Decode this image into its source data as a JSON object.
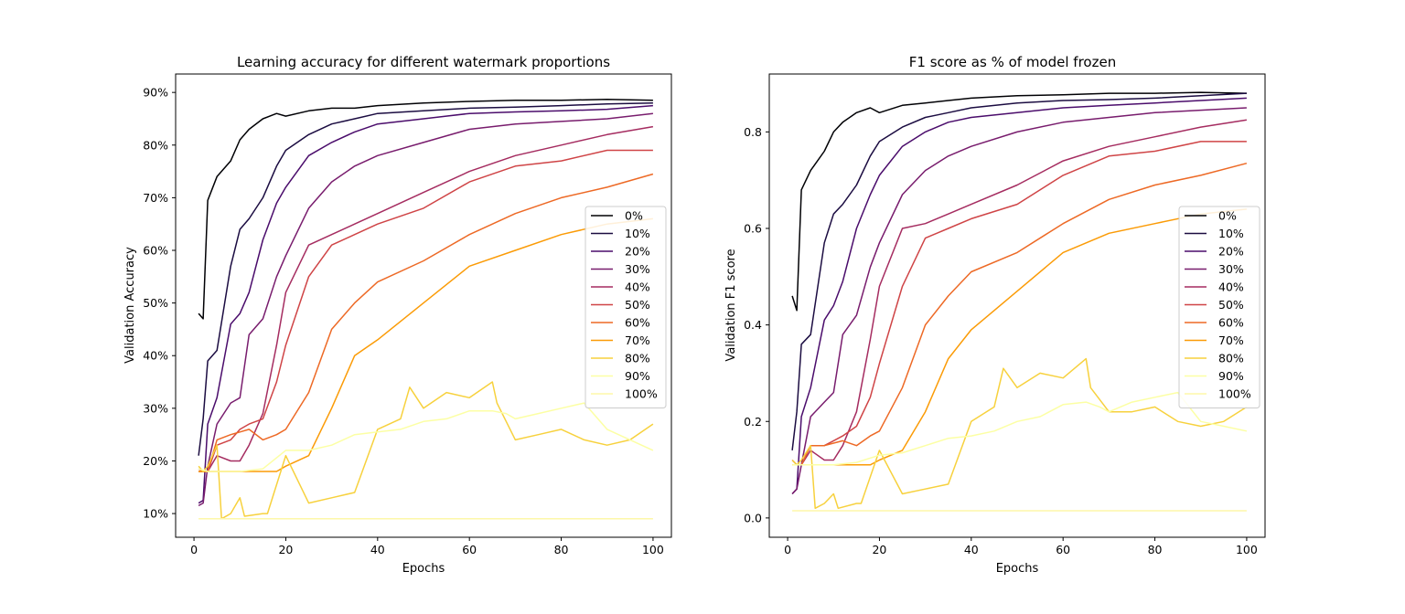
{
  "chart_data": [
    {
      "type": "line",
      "title": "Learning accuracy for different watermark proportions",
      "xlabel": "Epochs",
      "ylabel": "Validation Accuracy",
      "xlim": [
        -4,
        104
      ],
      "ylim": [
        5.5,
        93.5
      ],
      "xticks": [
        "0",
        "20",
        "40",
        "60",
        "80",
        "100"
      ],
      "yticks": [
        "10%",
        "20%",
        "30%",
        "40%",
        "50%",
        "60%",
        "70%",
        "80%",
        "90%"
      ],
      "legend_position": "center-right",
      "grid": false,
      "series": [
        {
          "name": "0%",
          "color": "#000004",
          "x": [
            1,
            2,
            3,
            5,
            8,
            10,
            12,
            15,
            18,
            20,
            25,
            30,
            35,
            40,
            50,
            60,
            70,
            80,
            90,
            100
          ],
          "values": [
            48,
            47,
            69.5,
            74,
            77,
            81,
            83,
            85,
            86,
            85.5,
            86.5,
            87,
            87,
            87.5,
            88,
            88.3,
            88.5,
            88.5,
            88.7,
            88.5
          ]
        },
        {
          "name": "10%",
          "color": "#1b0c41",
          "x": [
            1,
            2,
            3,
            5,
            8,
            10,
            12,
            15,
            18,
            20,
            25,
            30,
            35,
            40,
            50,
            60,
            70,
            80,
            90,
            100
          ],
          "values": [
            21,
            28,
            39,
            41,
            57,
            64,
            66,
            70,
            76,
            79,
            82,
            84,
            85,
            86,
            86.5,
            87,
            87.2,
            87.5,
            87.8,
            88
          ]
        },
        {
          "name": "20%",
          "color": "#4a0c6b",
          "x": [
            1,
            2,
            3,
            5,
            8,
            10,
            12,
            15,
            18,
            20,
            25,
            30,
            35,
            40,
            50,
            60,
            70,
            80,
            90,
            100
          ],
          "values": [
            12,
            12.5,
            27,
            32,
            46,
            48,
            52,
            62,
            69,
            72,
            78,
            80.5,
            82.5,
            84,
            85,
            86,
            86.3,
            86.5,
            86.8,
            87.5
          ]
        },
        {
          "name": "30%",
          "color": "#781c6d",
          "x": [
            1,
            2,
            3,
            5,
            8,
            10,
            12,
            15,
            18,
            20,
            25,
            30,
            35,
            40,
            50,
            60,
            70,
            80,
            90,
            100
          ],
          "values": [
            11.5,
            12,
            19,
            27,
            31,
            32,
            44,
            47,
            55,
            59,
            68,
            73,
            76,
            78,
            80.5,
            83,
            84,
            84.5,
            85,
            86
          ]
        },
        {
          "name": "40%",
          "color": "#a52c60",
          "x": [
            1,
            2,
            3,
            5,
            8,
            10,
            12,
            15,
            18,
            20,
            25,
            30,
            35,
            40,
            50,
            60,
            70,
            80,
            90,
            100
          ],
          "values": [
            18,
            18,
            18,
            21,
            20,
            20,
            23,
            29,
            42,
            52,
            61,
            63,
            65,
            67,
            71,
            75,
            78,
            80,
            82,
            83.5
          ]
        },
        {
          "name": "50%",
          "color": "#cf4446",
          "x": [
            1,
            2,
            3,
            5,
            8,
            10,
            12,
            15,
            18,
            20,
            25,
            30,
            35,
            40,
            50,
            60,
            70,
            80,
            90,
            100
          ],
          "values": [
            18.5,
            18,
            18,
            23,
            24,
            26,
            27,
            28,
            35,
            42,
            55,
            61,
            63,
            65,
            68,
            73,
            76,
            77,
            79,
            79
          ]
        },
        {
          "name": "60%",
          "color": "#ed6925",
          "x": [
            1,
            2,
            3,
            5,
            8,
            10,
            12,
            15,
            18,
            20,
            25,
            30,
            35,
            40,
            50,
            60,
            70,
            80,
            90,
            100
          ],
          "values": [
            18,
            18,
            18,
            24,
            25,
            25.5,
            26,
            24,
            25,
            26,
            33,
            45,
            50,
            54,
            58,
            63,
            67,
            70,
            72,
            74.5
          ]
        },
        {
          "name": "70%",
          "color": "#fb9b06",
          "x": [
            1,
            2,
            3,
            5,
            8,
            10,
            12,
            15,
            18,
            20,
            25,
            30,
            35,
            40,
            50,
            60,
            70,
            80,
            90,
            100
          ],
          "values": [
            18,
            18,
            18,
            18,
            18,
            18,
            18,
            18,
            18,
            19,
            21,
            30,
            40,
            43,
            50,
            57,
            60,
            63,
            65,
            66
          ]
        },
        {
          "name": "80%",
          "color": "#f7d13d",
          "x": [
            1,
            2,
            3,
            5,
            6,
            8,
            10,
            11,
            15,
            16,
            20,
            25,
            30,
            35,
            40,
            45,
            47,
            50,
            55,
            60,
            65,
            66,
            70,
            75,
            80,
            85,
            90,
            95,
            100
          ],
          "values": [
            19,
            18,
            19,
            23,
            9,
            10,
            13,
            9.5,
            10,
            10,
            21,
            12,
            13,
            14,
            26,
            28,
            34,
            30,
            33,
            32,
            35,
            31,
            24,
            25,
            26,
            24,
            23,
            24,
            27
          ]
        },
        {
          "name": "90%",
          "color": "#fcffa4",
          "x": [
            1,
            3,
            5,
            10,
            15,
            20,
            25,
            30,
            35,
            40,
            45,
            50,
            55,
            60,
            65,
            68,
            70,
            75,
            80,
            85,
            90,
            95,
            100
          ],
          "values": [
            18.5,
            18,
            18,
            18,
            18.5,
            22,
            22,
            23,
            25,
            25.5,
            26,
            27.5,
            28,
            29.5,
            29.5,
            29,
            28,
            29,
            30,
            31,
            26,
            24,
            22
          ]
        },
        {
          "name": "100%",
          "color": "#fdf7a8",
          "x": [
            1,
            100
          ],
          "values": [
            9,
            9
          ]
        }
      ]
    },
    {
      "type": "line",
      "title": "F1 score as % of model frozen",
      "xlabel": "Epochs",
      "ylabel": "Validation F1 score",
      "xlim": [
        -4,
        104
      ],
      "ylim": [
        -0.04,
        0.92
      ],
      "xticks": [
        "0",
        "20",
        "40",
        "60",
        "80",
        "100"
      ],
      "yticks": [
        "0.0",
        "0.2",
        "0.4",
        "0.6",
        "0.8"
      ],
      "legend_position": "center-right",
      "grid": false,
      "series": [
        {
          "name": "0%",
          "color": "#000004",
          "x": [
            1,
            2,
            3,
            5,
            8,
            10,
            12,
            15,
            18,
            20,
            25,
            30,
            35,
            40,
            50,
            60,
            70,
            80,
            90,
            100
          ],
          "values": [
            0.46,
            0.43,
            0.68,
            0.72,
            0.76,
            0.8,
            0.82,
            0.84,
            0.85,
            0.84,
            0.855,
            0.86,
            0.865,
            0.87,
            0.875,
            0.877,
            0.88,
            0.88,
            0.882,
            0.88
          ]
        },
        {
          "name": "10%",
          "color": "#1b0c41",
          "x": [
            1,
            2,
            3,
            5,
            8,
            10,
            12,
            15,
            18,
            20,
            25,
            30,
            35,
            40,
            50,
            60,
            70,
            80,
            90,
            100
          ],
          "values": [
            0.14,
            0.22,
            0.36,
            0.38,
            0.57,
            0.63,
            0.65,
            0.69,
            0.75,
            0.78,
            0.81,
            0.83,
            0.84,
            0.85,
            0.86,
            0.865,
            0.867,
            0.87,
            0.875,
            0.88
          ]
        },
        {
          "name": "20%",
          "color": "#4a0c6b",
          "x": [
            1,
            2,
            3,
            5,
            8,
            10,
            12,
            15,
            18,
            20,
            25,
            30,
            35,
            40,
            50,
            60,
            70,
            80,
            90,
            100
          ],
          "values": [
            0.05,
            0.06,
            0.21,
            0.27,
            0.41,
            0.44,
            0.49,
            0.6,
            0.67,
            0.71,
            0.77,
            0.8,
            0.82,
            0.83,
            0.84,
            0.85,
            0.855,
            0.86,
            0.865,
            0.87
          ]
        },
        {
          "name": "30%",
          "color": "#781c6d",
          "x": [
            1,
            2,
            3,
            5,
            8,
            10,
            12,
            15,
            18,
            20,
            25,
            30,
            35,
            40,
            50,
            60,
            70,
            80,
            90,
            100
          ],
          "values": [
            0.05,
            0.06,
            0.11,
            0.21,
            0.24,
            0.26,
            0.38,
            0.42,
            0.52,
            0.57,
            0.67,
            0.72,
            0.75,
            0.77,
            0.8,
            0.82,
            0.83,
            0.84,
            0.845,
            0.85
          ]
        },
        {
          "name": "40%",
          "color": "#a52c60",
          "x": [
            1,
            2,
            3,
            5,
            8,
            10,
            12,
            15,
            18,
            20,
            25,
            30,
            35,
            40,
            50,
            60,
            70,
            80,
            90,
            100
          ],
          "values": [
            0.11,
            0.11,
            0.11,
            0.14,
            0.12,
            0.12,
            0.15,
            0.22,
            0.37,
            0.48,
            0.6,
            0.61,
            0.63,
            0.65,
            0.69,
            0.74,
            0.77,
            0.79,
            0.81,
            0.825
          ]
        },
        {
          "name": "50%",
          "color": "#cf4446",
          "x": [
            1,
            2,
            3,
            5,
            8,
            10,
            12,
            15,
            18,
            20,
            25,
            30,
            35,
            40,
            50,
            60,
            70,
            80,
            90,
            100
          ],
          "values": [
            0.12,
            0.11,
            0.11,
            0.15,
            0.15,
            0.16,
            0.17,
            0.19,
            0.25,
            0.32,
            0.48,
            0.58,
            0.6,
            0.62,
            0.65,
            0.71,
            0.75,
            0.76,
            0.78,
            0.78
          ]
        },
        {
          "name": "60%",
          "color": "#ed6925",
          "x": [
            1,
            2,
            3,
            5,
            8,
            10,
            12,
            15,
            18,
            20,
            25,
            30,
            35,
            40,
            50,
            60,
            70,
            80,
            90,
            100
          ],
          "values": [
            0.11,
            0.11,
            0.11,
            0.15,
            0.15,
            0.155,
            0.16,
            0.15,
            0.17,
            0.18,
            0.27,
            0.4,
            0.46,
            0.51,
            0.55,
            0.61,
            0.66,
            0.69,
            0.71,
            0.735
          ]
        },
        {
          "name": "70%",
          "color": "#fb9b06",
          "x": [
            1,
            2,
            3,
            5,
            8,
            10,
            12,
            15,
            18,
            20,
            25,
            30,
            35,
            40,
            50,
            60,
            70,
            80,
            90,
            100
          ],
          "values": [
            0.11,
            0.11,
            0.11,
            0.11,
            0.11,
            0.11,
            0.11,
            0.11,
            0.11,
            0.12,
            0.14,
            0.22,
            0.33,
            0.39,
            0.47,
            0.55,
            0.59,
            0.61,
            0.63,
            0.64
          ]
        },
        {
          "name": "80%",
          "color": "#f7d13d",
          "x": [
            1,
            2,
            3,
            5,
            6,
            8,
            10,
            11,
            15,
            16,
            20,
            25,
            30,
            35,
            40,
            45,
            47,
            50,
            55,
            60,
            65,
            66,
            70,
            75,
            80,
            85,
            90,
            95,
            100
          ],
          "values": [
            0.12,
            0.11,
            0.12,
            0.15,
            0.02,
            0.03,
            0.05,
            0.02,
            0.03,
            0.03,
            0.14,
            0.05,
            0.06,
            0.07,
            0.2,
            0.23,
            0.31,
            0.27,
            0.3,
            0.29,
            0.33,
            0.27,
            0.22,
            0.22,
            0.23,
            0.2,
            0.19,
            0.2,
            0.23
          ]
        },
        {
          "name": "90%",
          "color": "#fcffa4",
          "x": [
            1,
            3,
            5,
            10,
            15,
            20,
            25,
            30,
            35,
            40,
            45,
            50,
            55,
            60,
            65,
            68,
            70,
            75,
            80,
            85,
            90,
            95,
            100
          ],
          "values": [
            0.11,
            0.11,
            0.11,
            0.11,
            0.115,
            0.13,
            0.135,
            0.15,
            0.165,
            0.17,
            0.18,
            0.2,
            0.21,
            0.235,
            0.24,
            0.23,
            0.22,
            0.24,
            0.25,
            0.26,
            0.2,
            0.19,
            0.18
          ]
        },
        {
          "name": "100%",
          "color": "#fdf7a8",
          "x": [
            1,
            100
          ],
          "values": [
            0.015,
            0.015
          ]
        }
      ]
    }
  ]
}
